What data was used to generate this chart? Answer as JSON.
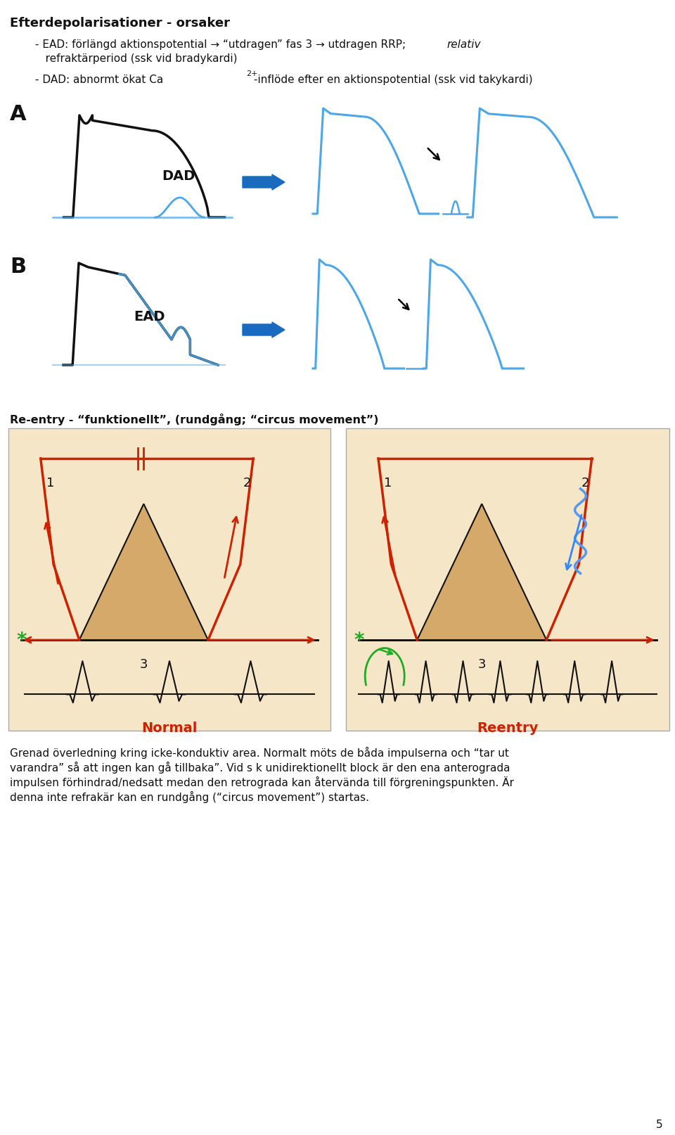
{
  "title": "Efterdepolarisationer - orsaker",
  "bullet1_part1": "- EAD: förlängd aktionspotential → “utdragen” fas 3 → utdragen RRP; ",
  "bullet1_italic": "relativ",
  "bullet1_line2": "   refraktärperiod (ssk vid bradykardi)",
  "bullet2_pre": "- DAD: abnormt ökat Ca",
  "bullet2_super": "2+",
  "bullet2_post": "-inflöde efter en aktionspotential (ssk vid takykardi)",
  "label_A": "A",
  "label_B": "B",
  "label_DAD": "DAD",
  "label_EAD": "EAD",
  "section_title": "Re-entry - “funktionellt”, (rundgång; “circus movement”)",
  "label_Normal": "Normal",
  "label_Reentry": "Reentry",
  "cap1": "Grenad överledning kring icke-konduktiv area. Normalt möts de båda impulserna och “tar ut",
  "cap2": "varandra” så att ingen kan gå tillbaka”. Vid s k unidirektionellt block är den ena anterograda",
  "cap3": "impulsen förhindrad/nedsatt medan den retrograda kan återvända till förgreningspunkten. Är",
  "cap4": "denna inte refrakär kan en rundgång (“circus movement”) startas.",
  "page_num": "5",
  "bg": "#ffffff",
  "black": "#111111",
  "blue": "#4da6e8",
  "dark_blue": "#1a6bbf",
  "red": "#cc2200",
  "green": "#22aa22",
  "tan": "#d4a96a",
  "panel_bg": "#f5e6c8",
  "panel_edge": "#aaaaaa"
}
